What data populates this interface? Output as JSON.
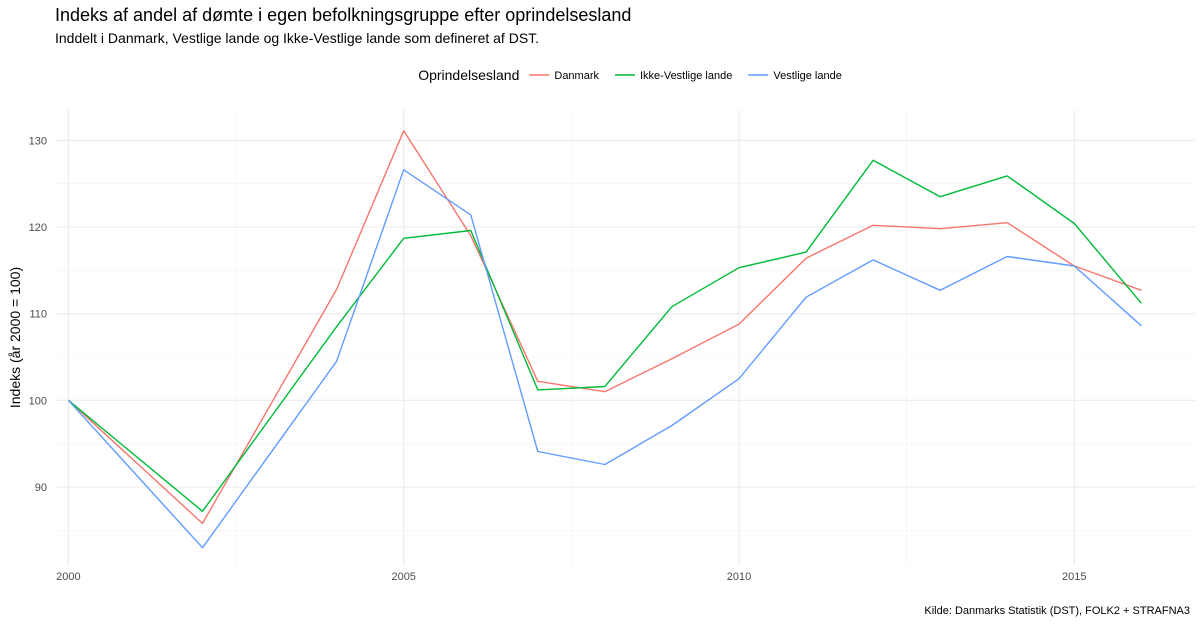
{
  "chart_data": {
    "type": "line",
    "title": "Indeks af andel af dømte i egen befolkningsgruppe efter oprindelsesland",
    "subtitle": "Inddelt i Danmark, Vestlige lande og Ikke-Vestlige lande som defineret af DST.",
    "caption": "Kilde: Danmarks Statistik (DST), FOLK2 + STRAFNA3",
    "xlabel": "",
    "ylabel": "Indeks (år 2000 = 100)",
    "legend_title": "Oprindelsesland",
    "legend_position": "top",
    "grid": true,
    "xlim": [
      1999.8,
      2016.8
    ],
    "ylim": [
      81,
      133.5
    ],
    "x_ticks": [
      2000,
      2005,
      2010,
      2015
    ],
    "y_ticks": [
      90,
      100,
      110,
      120,
      130
    ],
    "x": [
      2000,
      2002,
      2004,
      2005,
      2006,
      2007,
      2008,
      2009,
      2010,
      2011,
      2012,
      2013,
      2014,
      2015,
      2016
    ],
    "series": [
      {
        "name": "Danmark",
        "color": "#f8766d",
        "values": [
          100,
          85.8,
          112.8,
          131.1,
          119.0,
          102.2,
          101.0,
          104.8,
          108.8,
          116.4,
          120.2,
          119.8,
          120.5,
          115.5,
          112.7
        ]
      },
      {
        "name": "Ikke-Vestlige lande",
        "color": "#00ba38",
        "values": [
          100,
          87.2,
          108.5,
          118.7,
          119.6,
          101.2,
          101.6,
          110.8,
          115.3,
          117.1,
          127.7,
          123.5,
          125.9,
          120.4,
          111.2
        ]
      },
      {
        "name": "Vestlige lande",
        "color": "#619cff",
        "values": [
          100,
          83.0,
          104.5,
          126.6,
          121.4,
          94.1,
          92.6,
          97.1,
          102.5,
          111.9,
          116.2,
          112.7,
          116.6,
          115.5,
          108.6
        ]
      }
    ]
  }
}
